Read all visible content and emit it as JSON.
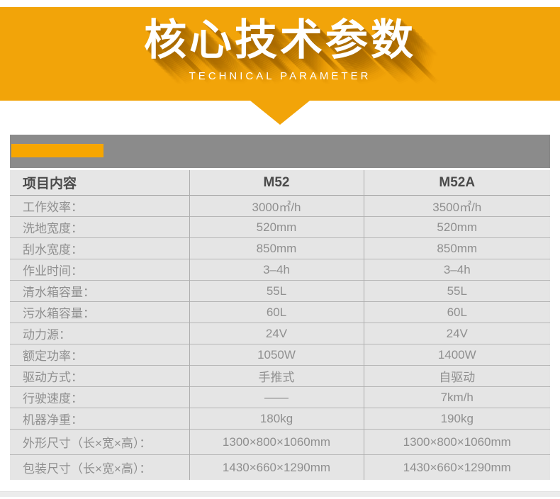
{
  "banner": {
    "title": "核心技术参数",
    "subtitle": "TECHNICAL PARAMETER",
    "bg_color": "#f2a409",
    "text_color": "#ffffff",
    "shadow_color": "#c98a00"
  },
  "section_bar": {
    "bar_color": "#8b8b8b",
    "accent_color": "#f7a600"
  },
  "table": {
    "columns": [
      "项目内容",
      "M52",
      "M52A"
    ],
    "row_bg_color": "#e5e5e5",
    "label_text_color": "#8f8f8f",
    "header_text_color": "#4b4b4b",
    "rows": [
      {
        "label": "工作效率：",
        "m52": "3000㎡/h",
        "m52a": "3500㎡/h"
      },
      {
        "label": "洗地宽度：",
        "m52": "520mm",
        "m52a": "520mm"
      },
      {
        "label": "刮水宽度：",
        "m52": "850mm",
        "m52a": "850mm"
      },
      {
        "label": "作业时间：",
        "m52": "3–4h",
        "m52a": "3–4h"
      },
      {
        "label": "清水箱容量：",
        "m52": "55L",
        "m52a": "55L"
      },
      {
        "label": "污水箱容量：",
        "m52": "60L",
        "m52a": "60L"
      },
      {
        "label": "动力源：",
        "m52": "24V",
        "m52a": "24V"
      },
      {
        "label": "额定功率：",
        "m52": "1050W",
        "m52a": "1400W"
      },
      {
        "label": "驱动方式：",
        "m52": "手推式",
        "m52a": "自驱动"
      },
      {
        "label": "行驶速度：",
        "m52": "——",
        "m52a": "7km/h"
      },
      {
        "label": "机器净重：",
        "m52": "180kg",
        "m52a": "190kg"
      },
      {
        "label": "外形尺寸（长×宽×高）：",
        "m52": "1300×800×1060mm",
        "m52a": "1300×800×1060mm"
      },
      {
        "label": "包装尺寸（长×宽×高）：",
        "m52": "1430×660×1290mm",
        "m52a": "1430×660×1290mm"
      }
    ]
  }
}
